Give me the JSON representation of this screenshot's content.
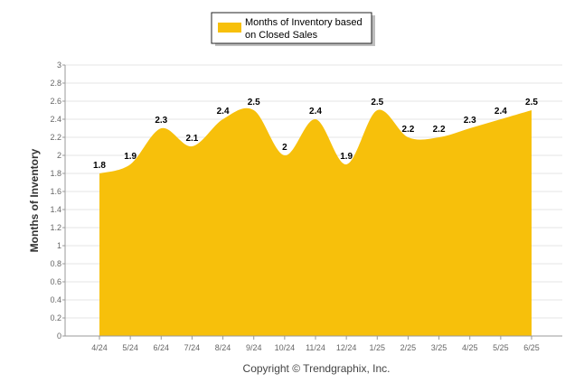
{
  "chart_data": {
    "type": "area",
    "title": "",
    "xlabel": "",
    "ylabel": "Months of Inventory",
    "categories": [
      "4/24",
      "5/24",
      "6/24",
      "7/24",
      "8/24",
      "9/24",
      "10/24",
      "11/24",
      "12/24",
      "1/25",
      "2/25",
      "3/25",
      "4/25",
      "5/25",
      "6/25"
    ],
    "series": [
      {
        "name": "Months of Inventory based on Closed Sales",
        "values": [
          1.8,
          1.9,
          2.3,
          2.1,
          2.4,
          2.5,
          2.0,
          2.4,
          1.9,
          2.5,
          2.2,
          2.2,
          2.3,
          2.4,
          2.5
        ],
        "labels": [
          "1.8",
          "1.9",
          "2.3",
          "2.1",
          "2.4",
          "2.5",
          "2",
          "2.4",
          "1.9",
          "2.5",
          "2.2",
          "2.2",
          "2.3",
          "2.4",
          "2.5"
        ],
        "color": "#F7C00B"
      }
    ],
    "ylim": [
      0,
      3
    ],
    "yticks": [
      "0",
      "0.2",
      "0.4",
      "0.6",
      "0.8",
      "1",
      "1.2",
      "1.4",
      "1.6",
      "1.8",
      "2",
      "2.2",
      "2.4",
      "2.6",
      "2.8",
      "3"
    ],
    "grid": true,
    "legend_position": "top-center"
  },
  "legend": {
    "line1": "Months of Inventory based",
    "line2": "on Closed Sales"
  },
  "footer": {
    "copyright": "Copyright © Trendgraphix, Inc."
  }
}
